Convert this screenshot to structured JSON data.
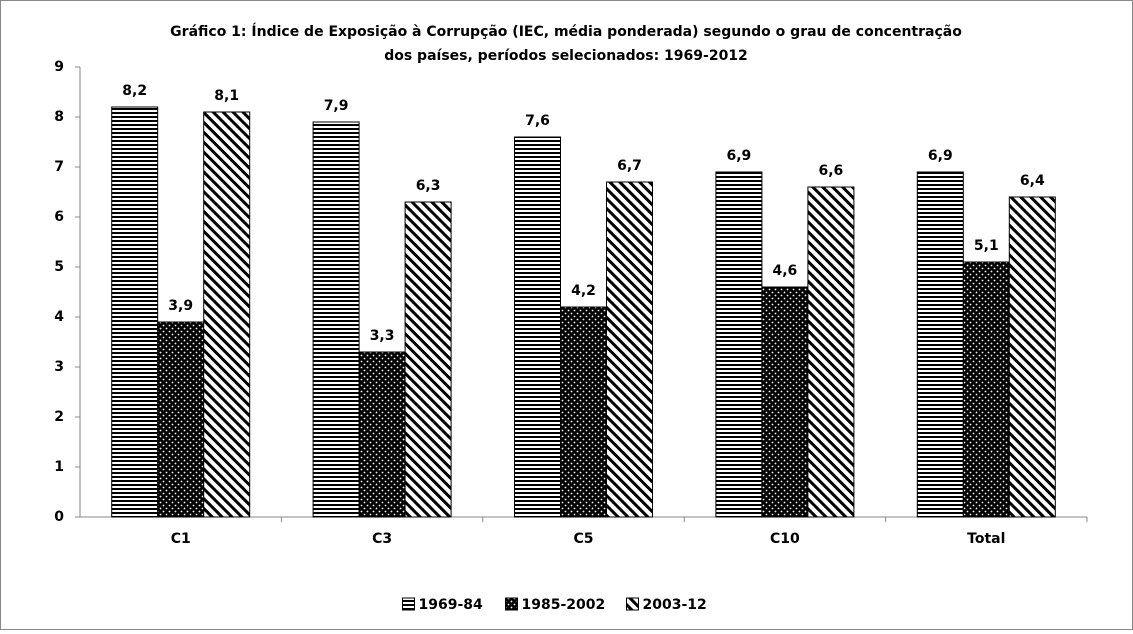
{
  "chart_data": {
    "type": "bar",
    "title": [
      "Gráfico 1: Índice de Exposição à Corrupção (IEC, média ponderada) segundo o grau de concentração",
      "dos países, períodos selecionados: 1969-2012"
    ],
    "categories": [
      "C1",
      "C3",
      "C5",
      "C10",
      "Total"
    ],
    "series": [
      {
        "name": "1969-84",
        "pattern": "horizontal",
        "color": "#000000",
        "values": [
          8.2,
          7.9,
          7.6,
          6.9,
          6.9
        ],
        "value_labels": [
          "8,2",
          "7,9",
          "7,6",
          "6,9",
          "6,9"
        ]
      },
      {
        "name": "1985-2002",
        "pattern": "dots",
        "color": "#000000",
        "values": [
          3.9,
          3.3,
          4.2,
          4.6,
          5.1
        ],
        "value_labels": [
          "3,9",
          "3,3",
          "4,2",
          "4,6",
          "5,1"
        ]
      },
      {
        "name": "2003-12",
        "pattern": "diagonal",
        "color": "#000000",
        "values": [
          8.1,
          6.3,
          6.7,
          6.6,
          6.4
        ],
        "value_labels": [
          "8,1",
          "6,3",
          "6,7",
          "6,6",
          "6,4"
        ]
      }
    ],
    "ylim": [
      0,
      9
    ],
    "yticks": [
      0,
      1,
      2,
      3,
      4,
      5,
      6,
      7,
      8,
      9
    ],
    "grid": false,
    "legend": "bottom"
  }
}
